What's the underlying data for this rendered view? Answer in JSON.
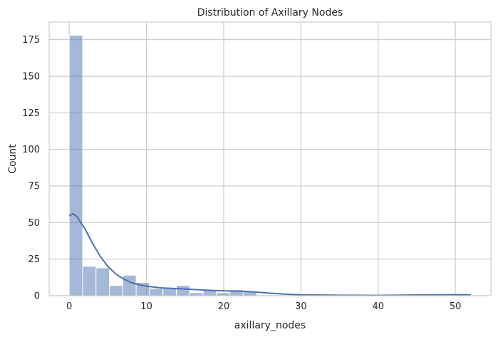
{
  "chart_data": {
    "type": "bar",
    "title": "Distribution of Axillary Nodes",
    "xlabel": "axillary_nodes",
    "ylabel": "Count",
    "xlim": [
      -2.6,
      54.6
    ],
    "ylim": [
      0,
      187
    ],
    "x_ticks": [
      0,
      10,
      20,
      30,
      40,
      50
    ],
    "y_ticks": [
      0,
      25,
      50,
      75,
      100,
      125,
      150,
      175
    ],
    "grid": true,
    "bins": {
      "start": 0,
      "width": 1.7333,
      "counts": [
        178,
        20,
        19,
        7,
        14,
        9,
        5,
        5,
        7,
        2,
        4,
        2,
        4,
        3,
        0,
        0,
        0,
        0,
        0,
        0,
        0,
        0,
        0,
        0,
        0,
        0,
        0,
        0,
        0,
        1
      ]
    },
    "kde": {
      "x": [
        0,
        0.5,
        1,
        2,
        3,
        4,
        5,
        6,
        7,
        8,
        9,
        10,
        12,
        14,
        16,
        18,
        20,
        22,
        24,
        26,
        28,
        30,
        35,
        40,
        45,
        50,
        52
      ],
      "y": [
        54.5,
        56,
        54,
        46,
        36,
        27,
        20,
        15,
        11.5,
        9,
        7.5,
        6.5,
        5.3,
        4.8,
        4.3,
        3.7,
        3.3,
        3.1,
        2.6,
        1.7,
        1.0,
        0.6,
        0.3,
        0.2,
        0.5,
        0.7,
        0.6
      ]
    },
    "colors": {
      "bar_fill": "rgba(76,114,176,0.5)",
      "kde_line": "#4c72b0",
      "grid": "#cccccc"
    }
  }
}
